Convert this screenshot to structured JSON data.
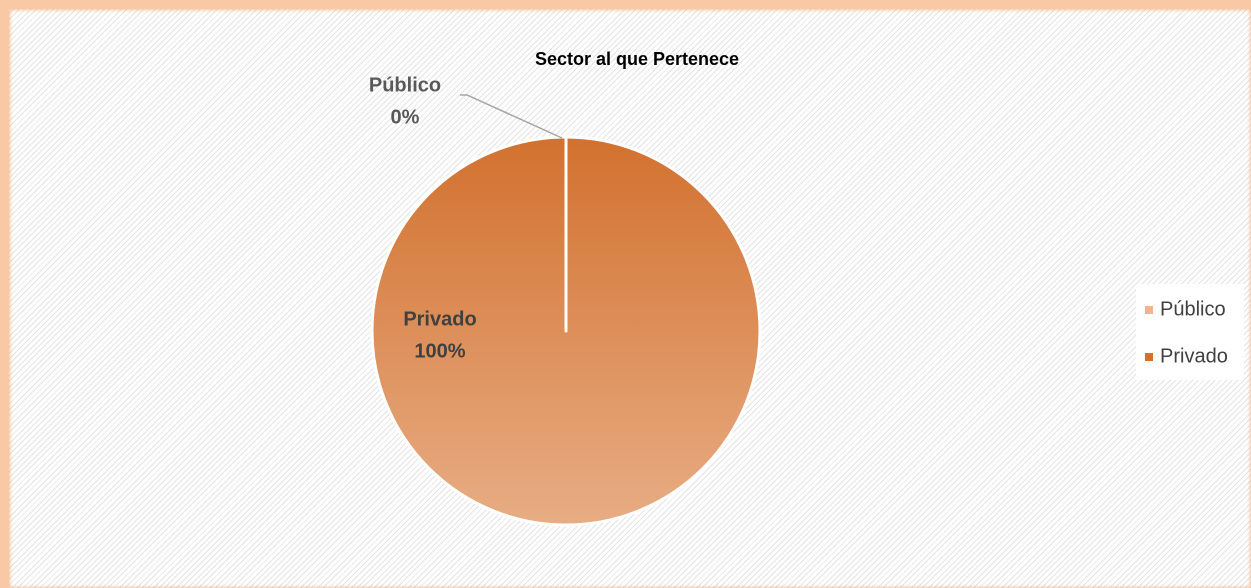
{
  "chart_data": {
    "type": "pie",
    "title": "Sector al que Pertenece",
    "categories": [
      "Público",
      "Privado"
    ],
    "values": [
      0,
      100
    ],
    "value_labels": [
      "0%",
      "100%"
    ],
    "colors": [
      "#f2b48c",
      "#d2712f"
    ],
    "legend": "right"
  }
}
